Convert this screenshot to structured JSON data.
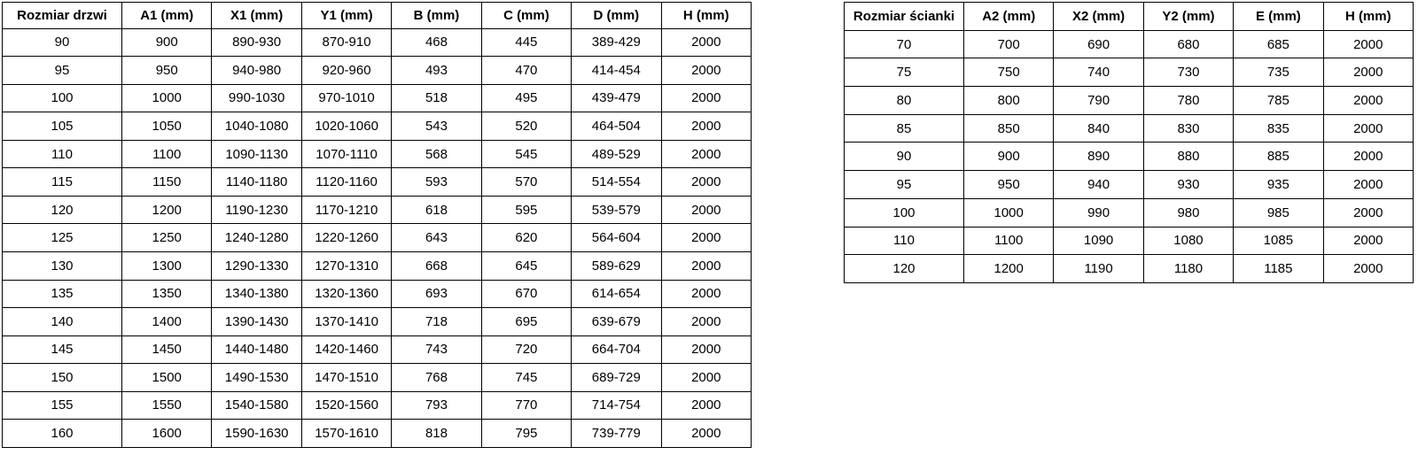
{
  "page": {
    "background_color": "#ffffff",
    "border_color": "#000000",
    "text_color": "#000000"
  },
  "door_table": {
    "headers": [
      "Rozmiar drzwi",
      "A1 (mm)",
      "X1 (mm)",
      "Y1 (mm)",
      "B (mm)",
      "C (mm)",
      "D (mm)",
      "H (mm)"
    ],
    "rows": [
      [
        "90",
        "900",
        "890-930",
        "870-910",
        "468",
        "445",
        "389-429",
        "2000"
      ],
      [
        "95",
        "950",
        "940-980",
        "920-960",
        "493",
        "470",
        "414-454",
        "2000"
      ],
      [
        "100",
        "1000",
        "990-1030",
        "970-1010",
        "518",
        "495",
        "439-479",
        "2000"
      ],
      [
        "105",
        "1050",
        "1040-1080",
        "1020-1060",
        "543",
        "520",
        "464-504",
        "2000"
      ],
      [
        "110",
        "1100",
        "1090-1130",
        "1070-1110",
        "568",
        "545",
        "489-529",
        "2000"
      ],
      [
        "115",
        "1150",
        "1140-1180",
        "1120-1160",
        "593",
        "570",
        "514-554",
        "2000"
      ],
      [
        "120",
        "1200",
        "1190-1230",
        "1170-1210",
        "618",
        "595",
        "539-579",
        "2000"
      ],
      [
        "125",
        "1250",
        "1240-1280",
        "1220-1260",
        "643",
        "620",
        "564-604",
        "2000"
      ],
      [
        "130",
        "1300",
        "1290-1330",
        "1270-1310",
        "668",
        "645",
        "589-629",
        "2000"
      ],
      [
        "135",
        "1350",
        "1340-1380",
        "1320-1360",
        "693",
        "670",
        "614-654",
        "2000"
      ],
      [
        "140",
        "1400",
        "1390-1430",
        "1370-1410",
        "718",
        "695",
        "639-679",
        "2000"
      ],
      [
        "145",
        "1450",
        "1440-1480",
        "1420-1460",
        "743",
        "720",
        "664-704",
        "2000"
      ],
      [
        "150",
        "1500",
        "1490-1530",
        "1470-1510",
        "768",
        "745",
        "689-729",
        "2000"
      ],
      [
        "155",
        "1550",
        "1540-1580",
        "1520-1560",
        "793",
        "770",
        "714-754",
        "2000"
      ],
      [
        "160",
        "1600",
        "1590-1630",
        "1570-1610",
        "818",
        "795",
        "739-779",
        "2000"
      ]
    ]
  },
  "wall_table": {
    "headers": [
      "Rozmiar ścianki",
      "A2 (mm)",
      "X2 (mm)",
      "Y2 (mm)",
      "E (mm)",
      "H (mm)"
    ],
    "rows": [
      [
        "70",
        "700",
        "690",
        "680",
        "685",
        "2000"
      ],
      [
        "75",
        "750",
        "740",
        "730",
        "735",
        "2000"
      ],
      [
        "80",
        "800",
        "790",
        "780",
        "785",
        "2000"
      ],
      [
        "85",
        "850",
        "840",
        "830",
        "835",
        "2000"
      ],
      [
        "90",
        "900",
        "890",
        "880",
        "885",
        "2000"
      ],
      [
        "95",
        "950",
        "940",
        "930",
        "935",
        "2000"
      ],
      [
        "100",
        "1000",
        "990",
        "980",
        "985",
        "2000"
      ],
      [
        "110",
        "1100",
        "1090",
        "1080",
        "1085",
        "2000"
      ],
      [
        "120",
        "1200",
        "1190",
        "1180",
        "1185",
        "2000"
      ]
    ]
  }
}
